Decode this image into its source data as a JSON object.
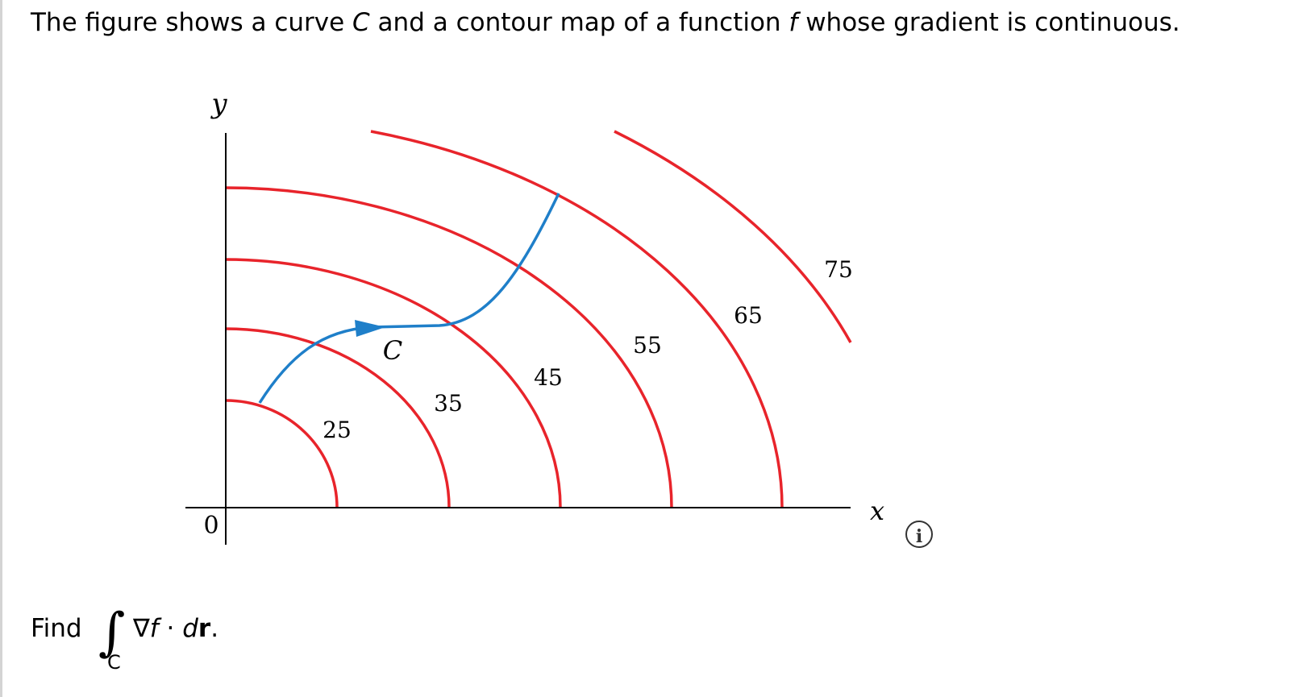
{
  "question": [
    "The figure shows a curve ",
    "C",
    " and a contour map of a function ",
    "f",
    " whose gradient is continuous."
  ],
  "figure": {
    "y_label": "y",
    "x_label": "x",
    "origin_label": "0",
    "curve_label": "C",
    "contour_levels": [
      25,
      35,
      45,
      55,
      65,
      75
    ]
  },
  "prompt": {
    "find": "Find",
    "integral": "∫",
    "subscript": "C",
    "nabla": "∇",
    "f": "f",
    "dot": " · ",
    "d": "d",
    "r": "r",
    "end": "."
  }
}
